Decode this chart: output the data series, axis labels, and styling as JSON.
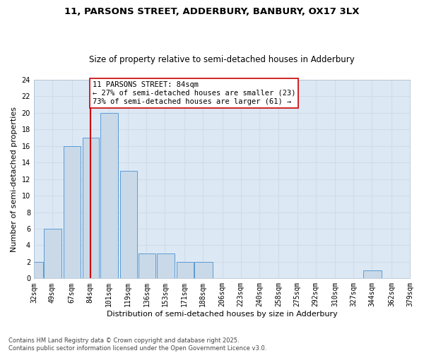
{
  "title1": "11, PARSONS STREET, ADDERBURY, BANBURY, OX17 3LX",
  "title2": "Size of property relative to semi-detached houses in Adderbury",
  "xlabel": "Distribution of semi-detached houses by size in Adderbury",
  "ylabel": "Number of semi-detached properties",
  "bins": [
    32,
    49,
    67,
    84,
    101,
    119,
    136,
    153,
    171,
    188,
    206,
    223,
    240,
    258,
    275,
    292,
    310,
    327,
    344,
    362,
    379
  ],
  "counts": [
    2,
    6,
    16,
    17,
    20,
    13,
    3,
    3,
    2,
    2,
    0,
    0,
    0,
    0,
    0,
    0,
    0,
    0,
    1,
    0
  ],
  "bar_facecolor": "#c9d9e8",
  "bar_edgecolor": "#5b9bd5",
  "grid_color": "#d0dce8",
  "bg_color": "#dce9f5",
  "vline_x": 84,
  "vline_color": "#cc0000",
  "annotation_text": "11 PARSONS STREET: 84sqm\n← 27% of semi-detached houses are smaller (23)\n73% of semi-detached houses are larger (61) →",
  "annotation_box_edgecolor": "#cc0000",
  "ylim": [
    0,
    24
  ],
  "yticks": [
    0,
    2,
    4,
    6,
    8,
    10,
    12,
    14,
    16,
    18,
    20,
    22,
    24
  ],
  "tick_labels": [
    "32sqm",
    "49sqm",
    "67sqm",
    "84sqm",
    "101sqm",
    "119sqm",
    "136sqm",
    "153sqm",
    "171sqm",
    "188sqm",
    "206sqm",
    "223sqm",
    "240sqm",
    "258sqm",
    "275sqm",
    "292sqm",
    "310sqm",
    "327sqm",
    "344sqm",
    "362sqm",
    "379sqm"
  ],
  "footer_text": "Contains HM Land Registry data © Crown copyright and database right 2025.\nContains public sector information licensed under the Open Government Licence v3.0.",
  "title_fontsize": 9.5,
  "subtitle_fontsize": 8.5,
  "axis_label_fontsize": 8,
  "tick_fontsize": 7,
  "annotation_fontsize": 7.5,
  "footer_fontsize": 6
}
